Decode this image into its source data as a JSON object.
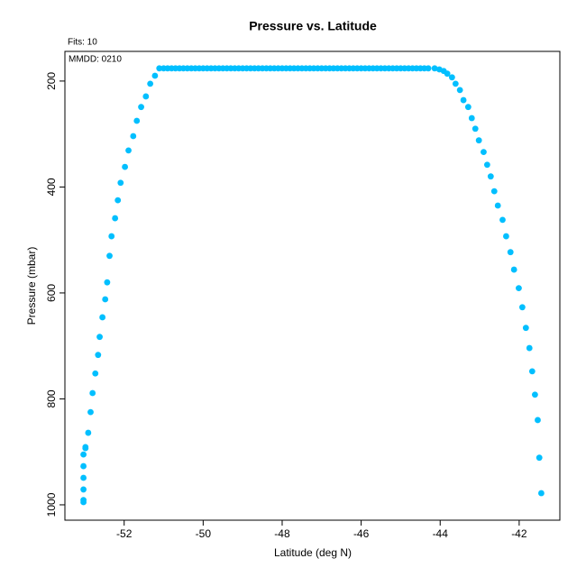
{
  "chart_data": {
    "type": "scatter",
    "title": "Pressure vs. Latitude",
    "annotations": [
      "Fits: 10",
      "MMDD: 0210"
    ],
    "x_label": "Latitude (deg N)",
    "y_label": "Pressure (mbar)",
    "color": "#00bfff",
    "xlim": [
      -53.5,
      -40.97
    ],
    "ylim": [
      1029,
      144
    ],
    "xticks": [
      -52,
      -50,
      -48,
      -46,
      -44,
      -42
    ],
    "yticks": [
      200,
      400,
      600,
      800,
      1000
    ],
    "x": [
      -53.03,
      -53.03,
      -53.03,
      -53.03,
      -53.03,
      -53.03,
      -52.98,
      -52.98,
      -52.91,
      -52.85,
      -52.8,
      -52.73,
      -52.66,
      -52.62,
      -52.55,
      -52.48,
      -52.43,
      -52.37,
      -52.32,
      -52.23,
      -52.16,
      -52.09,
      -51.98,
      -51.89,
      -51.77,
      -51.68,
      -51.57,
      -51.45,
      -51.34,
      -51.22,
      -51.11,
      -51.0,
      -50.9,
      -50.8,
      -50.7,
      -50.6,
      -50.5,
      -50.4,
      -50.3,
      -50.2,
      -50.1,
      -50.0,
      -49.9,
      -49.8,
      -49.7,
      -49.6,
      -49.5,
      -49.4,
      -49.3,
      -49.2,
      -49.1,
      -49.0,
      -48.9,
      -48.8,
      -48.7,
      -48.6,
      -48.5,
      -48.4,
      -48.3,
      -48.2,
      -48.1,
      -48.0,
      -47.9,
      -47.8,
      -47.7,
      -47.6,
      -47.5,
      -47.4,
      -47.3,
      -47.2,
      -47.1,
      -47.0,
      -46.9,
      -46.8,
      -46.7,
      -46.6,
      -46.5,
      -46.4,
      -46.3,
      -46.2,
      -46.1,
      -46.0,
      -45.9,
      -45.8,
      -45.7,
      -45.6,
      -45.5,
      -45.4,
      -45.3,
      -45.2,
      -45.1,
      -45.0,
      -44.9,
      -44.8,
      -44.7,
      -44.6,
      -44.5,
      -44.4,
      -44.3,
      -44.14,
      -44.02,
      -43.91,
      -43.82,
      -43.7,
      -43.61,
      -43.5,
      -43.41,
      -43.29,
      -43.2,
      -43.11,
      -43.02,
      -42.9,
      -42.81,
      -42.72,
      -42.63,
      -42.54,
      -42.42,
      -42.33,
      -42.22,
      -42.13,
      -42.01,
      -41.92,
      -41.83,
      -41.74,
      -41.67,
      -41.6,
      -41.53,
      -41.49,
      -41.44
    ],
    "values": [
      995,
      991,
      971,
      949,
      927,
      905,
      893,
      891,
      864,
      825,
      789,
      752,
      717,
      683,
      646,
      612,
      580,
      530,
      493,
      459,
      425,
      392,
      362,
      331,
      304,
      275,
      249,
      229,
      205,
      190,
      176,
      176,
      176,
      176,
      176,
      176,
      176,
      176,
      176,
      176,
      176,
      176,
      176,
      176,
      176,
      176,
      176,
      176,
      176,
      176,
      176,
      176,
      176,
      176,
      176,
      176,
      176,
      176,
      176,
      176,
      176,
      176,
      176,
      176,
      176,
      176,
      176,
      176,
      176,
      176,
      176,
      176,
      176,
      176,
      176,
      176,
      176,
      176,
      176,
      176,
      176,
      176,
      176,
      176,
      176,
      176,
      176,
      176,
      176,
      176,
      176,
      176,
      176,
      176,
      176,
      176,
      176,
      176,
      176,
      176,
      178,
      181,
      186,
      193,
      205,
      217,
      236,
      249,
      270,
      290,
      312,
      334,
      358,
      380,
      408,
      435,
      462,
      493,
      523,
      556,
      591,
      627,
      666,
      704,
      748,
      792,
      840,
      911,
      978
    ]
  }
}
